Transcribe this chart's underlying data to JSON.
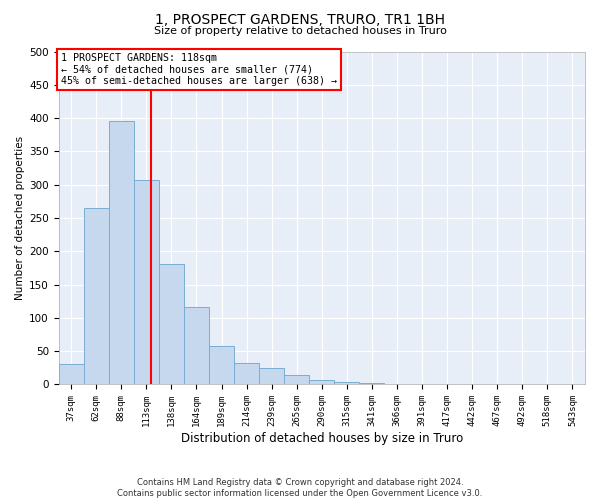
{
  "title": "1, PROSPECT GARDENS, TRURO, TR1 1BH",
  "subtitle": "Size of property relative to detached houses in Truro",
  "xlabel": "Distribution of detached houses by size in Truro",
  "ylabel": "Number of detached properties",
  "bar_color": "#c5d8ee",
  "bar_edge_color": "#7aadd4",
  "background_color": "#e8eef8",
  "grid_color": "#ffffff",
  "categories": [
    "37sqm",
    "62sqm",
    "88sqm",
    "113sqm",
    "138sqm",
    "164sqm",
    "189sqm",
    "214sqm",
    "239sqm",
    "265sqm",
    "290sqm",
    "315sqm",
    "341sqm",
    "366sqm",
    "391sqm",
    "417sqm",
    "442sqm",
    "467sqm",
    "492sqm",
    "518sqm",
    "543sqm"
  ],
  "values": [
    30,
    265,
    395,
    307,
    181,
    116,
    58,
    32,
    25,
    14,
    7,
    4,
    2,
    1,
    1,
    0,
    0,
    0,
    0,
    0,
    0
  ],
  "red_line_x": 3.2,
  "red_line_label": "1 PROSPECT GARDENS: 118sqm",
  "annotation_line1": "← 54% of detached houses are smaller (774)",
  "annotation_line2": "45% of semi-detached houses are larger (638) →",
  "ylim": [
    0,
    500
  ],
  "yticks": [
    0,
    50,
    100,
    150,
    200,
    250,
    300,
    350,
    400,
    450,
    500
  ],
  "footer_line1": "Contains HM Land Registry data © Crown copyright and database right 2024.",
  "footer_line2": "Contains public sector information licensed under the Open Government Licence v3.0."
}
